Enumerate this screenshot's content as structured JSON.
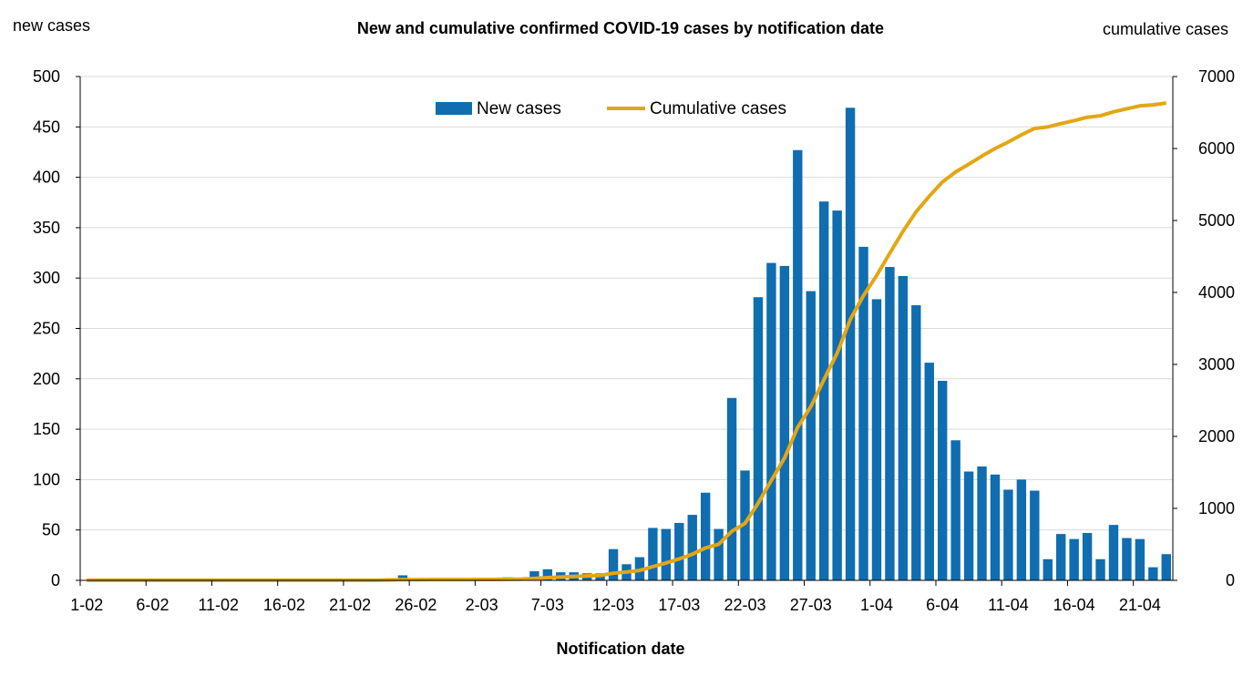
{
  "colors": {
    "bar": "#0F6DB0",
    "line": "#E3A614",
    "grid": "#D9D9D9",
    "axis": "#000000"
  },
  "chart_data": {
    "type": "bar+line",
    "title": "New and cumulative confirmed COVID-19 cases by notification date",
    "xlabel": "Notification date",
    "ylabel_left": "new cases",
    "ylabel_right": "cumulative cases",
    "ylim_left": [
      0,
      500
    ],
    "ylim_right": [
      0,
      7000
    ],
    "yticks_left": [
      0,
      50,
      100,
      150,
      200,
      250,
      300,
      350,
      400,
      450,
      500
    ],
    "yticks_right": [
      0,
      1000,
      2000,
      3000,
      4000,
      5000,
      6000,
      7000
    ],
    "xtick_labels": [
      "1-02",
      "6-02",
      "11-02",
      "16-02",
      "21-02",
      "26-02",
      "2-03",
      "7-03",
      "12-03",
      "17-03",
      "22-03",
      "27-03",
      "1-04",
      "6-04",
      "11-04",
      "16-04",
      "21-04"
    ],
    "grid": true,
    "legend": {
      "position": "top-center",
      "entries": [
        "New cases",
        "Cumulative cases"
      ]
    },
    "series": [
      {
        "name": "New cases",
        "type": "bar",
        "start_label": "1-02",
        "values": [
          0,
          0,
          0,
          0,
          0,
          0,
          0,
          0,
          0,
          0,
          0,
          0,
          0,
          0,
          0,
          0,
          0,
          0,
          0,
          0,
          0,
          0,
          0,
          2,
          5,
          1,
          1,
          0,
          0,
          0,
          1,
          1,
          3,
          2,
          9,
          11,
          8,
          8,
          7,
          7,
          31,
          16,
          23,
          52,
          51,
          57,
          65,
          87,
          51,
          181,
          109,
          281,
          315,
          312,
          427,
          287,
          376,
          367,
          469,
          331,
          279,
          311,
          302,
          273,
          216,
          198,
          139,
          108,
          113,
          105,
          90,
          100,
          89,
          21,
          46,
          41,
          47,
          21,
          55,
          42,
          41,
          13,
          26
        ]
      },
      {
        "name": "Cumulative cases",
        "type": "line",
        "axis": "right",
        "start_label": "1-02",
        "values": [
          2,
          2,
          2,
          2,
          2,
          2,
          2,
          2,
          2,
          2,
          2,
          2,
          2,
          2,
          2,
          2,
          2,
          2,
          2,
          2,
          2,
          2,
          2,
          4,
          9,
          10,
          11,
          11,
          11,
          11,
          12,
          13,
          16,
          18,
          27,
          38,
          46,
          54,
          61,
          68,
          99,
          115,
          138,
          190,
          241,
          298,
          363,
          450,
          501,
          682,
          791,
          1072,
          1387,
          1699,
          2126,
          2413,
          2789,
          3156,
          3625,
          3956,
          4235,
          4546,
          4848,
          5121,
          5337,
          5535,
          5674,
          5782,
          5895,
          6000,
          6090,
          6190,
          6279,
          6300,
          6346,
          6387,
          6434,
          6455,
          6510,
          6552,
          6593,
          6606,
          6632
        ]
      }
    ]
  }
}
